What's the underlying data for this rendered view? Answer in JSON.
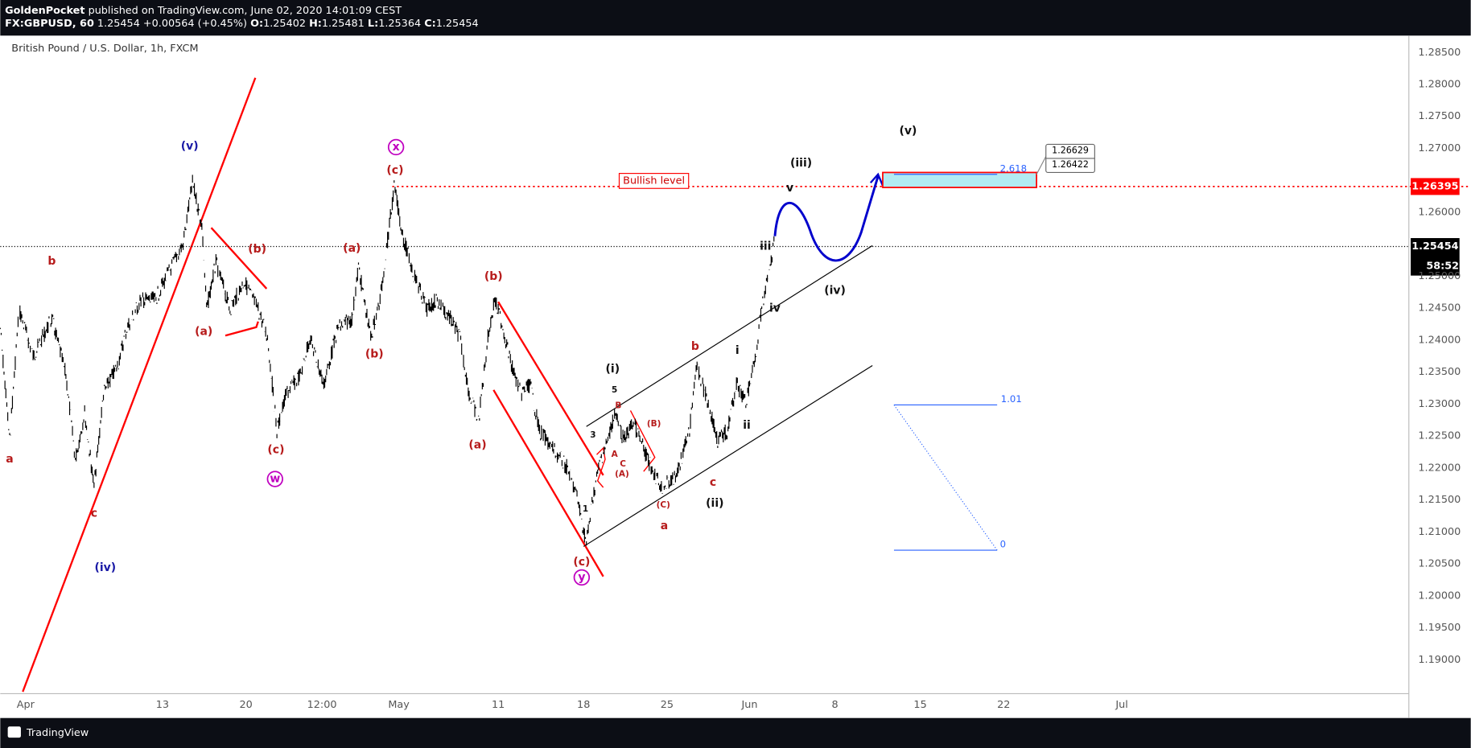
{
  "header": {
    "author": "GoldenPocket",
    "published": "published on TradingView.com, June 02, 2020 14:01:09 CEST",
    "symbol": "FX:GBPUSD, 60",
    "last": "1.25454",
    "change": "+0.00564 (+0.45%)",
    "o_label": "O:",
    "o": "1.25402",
    "h_label": "H:",
    "h": "1.25481",
    "l_label": "L:",
    "l": "1.25364",
    "c_label": "C:",
    "c": "1.25454"
  },
  "legend": "British Pound / U.S. Dollar, 1h, FXCM",
  "price_axis": [
    "1.28500",
    "1.28000",
    "1.27500",
    "1.27000",
    "1.26500",
    "1.26000",
    "1.25500",
    "1.25000",
    "1.24500",
    "1.24000",
    "1.23500",
    "1.23000",
    "1.22500",
    "1.22000",
    "1.21500",
    "1.21000",
    "1.20500",
    "1.20000",
    "1.19500",
    "1.19000"
  ],
  "price_labels": {
    "level": "1.26395",
    "current": "1.25454",
    "countdown": "58:52"
  },
  "date_axis": [
    "Apr",
    "13",
    "20",
    "12:00",
    "May",
    "11",
    "18",
    "25",
    "Jun",
    "8",
    "15",
    "22",
    "Jul"
  ],
  "wave_labels": [
    "a",
    "b",
    "c",
    "(iv)",
    "(v)",
    "(a)",
    "(b)",
    "(c)",
    "w",
    "(a)",
    "(b)",
    "(c)",
    "x",
    "(b)",
    "(a)",
    "(c)",
    "y",
    "1",
    "3",
    "5",
    "(i)",
    "A",
    "B",
    "C",
    "(A)",
    "(B)",
    "(C)",
    "a",
    "b",
    "c",
    "(ii)",
    "i",
    "ii",
    "iii",
    "iv",
    "(iii)",
    "v",
    "(iv)",
    "(v)"
  ],
  "annotations": {
    "bullish": "Bullish level",
    "fib_top": "2.618",
    "fib_mid": "1.01",
    "fib_zero": "0",
    "box_high": "1.26629",
    "box_low": "1.26422"
  },
  "footer": "TradingView"
}
